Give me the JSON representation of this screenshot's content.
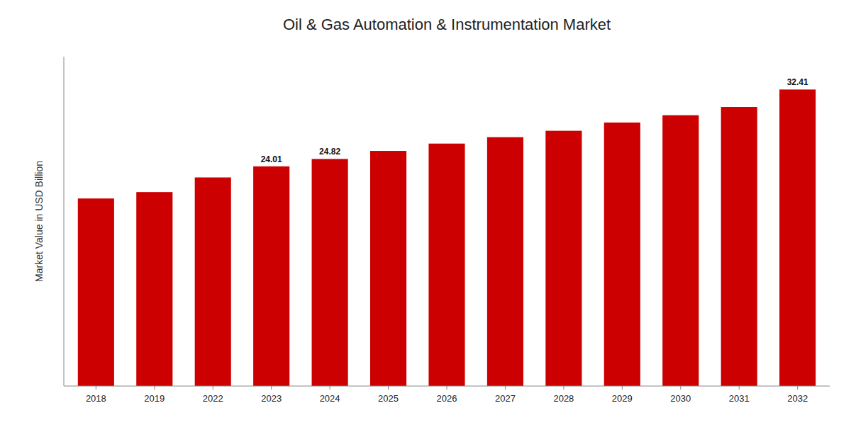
{
  "chart_data": {
    "type": "bar",
    "title": "Oil & Gas Automation & Instrumentation Market",
    "ylabel": "Market Value in USD Billion",
    "categories": [
      "2018",
      "2019",
      "2022",
      "2023",
      "2024",
      "2025",
      "2026",
      "2027",
      "2028",
      "2029",
      "2030",
      "2031",
      "2032"
    ],
    "values": [
      20.5,
      21.2,
      22.8,
      24.01,
      24.82,
      25.7,
      26.5,
      27.2,
      27.9,
      28.8,
      29.6,
      30.5,
      32.41
    ],
    "value_labels": [
      null,
      null,
      null,
      "24.01",
      "24.82",
      null,
      null,
      null,
      null,
      null,
      null,
      null,
      "32.41"
    ],
    "data_labels": true,
    "color": "#cc0000",
    "ylim": [
      0,
      36
    ],
    "tick_labels": "x"
  }
}
